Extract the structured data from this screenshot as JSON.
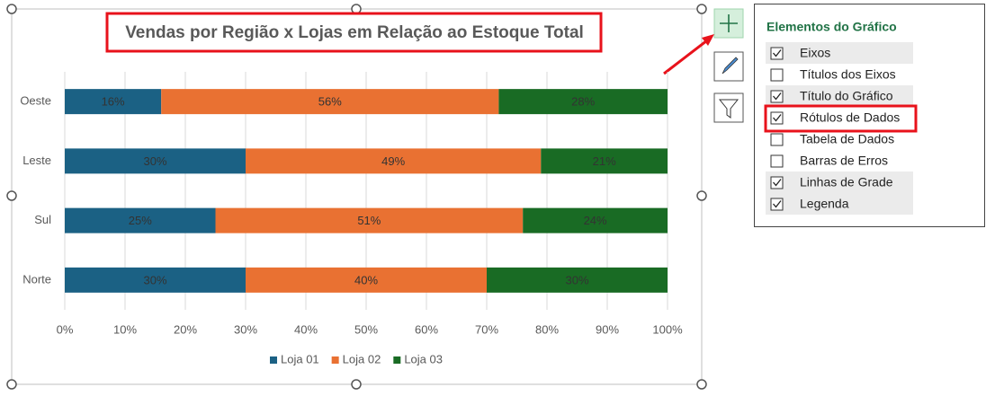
{
  "chart_data": {
    "type": "bar",
    "orientation": "horizontal",
    "stacked": true,
    "title": "Vendas por Região x Lojas em Relação ao Estoque Total",
    "categories": [
      "Oeste",
      "Leste",
      "Sul",
      "Norte"
    ],
    "series": [
      {
        "name": "Loja 01",
        "color": "#1b6184",
        "values": [
          16,
          30,
          25,
          30
        ],
        "value_labels": [
          "16%",
          "30%",
          "25%",
          "30%"
        ]
      },
      {
        "name": "Loja 02",
        "color": "#e97132",
        "values": [
          56,
          49,
          51,
          40
        ],
        "value_labels": [
          "56%",
          "49%",
          "51%",
          "40%"
        ]
      },
      {
        "name": "Loja 03",
        "color": "#196b24",
        "values": [
          28,
          21,
          24,
          30
        ],
        "value_labels": [
          "28%",
          "21%",
          "24%",
          "30%"
        ]
      }
    ],
    "xlim": [
      0,
      100
    ],
    "xticks": [
      {
        "value": 0,
        "label": "0%"
      },
      {
        "value": 10,
        "label": "10%"
      },
      {
        "value": 20,
        "label": "20%"
      },
      {
        "value": 30,
        "label": "30%"
      },
      {
        "value": 40,
        "label": "40%"
      },
      {
        "value": 50,
        "label": "50%"
      },
      {
        "value": 60,
        "label": "60%"
      },
      {
        "value": 70,
        "label": "70%"
      },
      {
        "value": 80,
        "label": "80%"
      },
      {
        "value": 90,
        "label": "90%"
      },
      {
        "value": 100,
        "label": "100%"
      }
    ],
    "grid": true,
    "legend": "bottom"
  },
  "panel": {
    "title": "Elementos do Gráfico",
    "items": [
      {
        "label": "Eixos",
        "checked": true
      },
      {
        "label": "Títulos dos Eixos",
        "checked": false
      },
      {
        "label": "Título do Gráfico",
        "checked": true
      },
      {
        "label": "Rótulos de Dados",
        "checked": true
      },
      {
        "label": "Tabela de Dados",
        "checked": false
      },
      {
        "label": "Barras de Erros",
        "checked": false
      },
      {
        "label": "Linhas de Grade",
        "checked": true
      },
      {
        "label": "Legenda",
        "checked": true
      }
    ]
  }
}
